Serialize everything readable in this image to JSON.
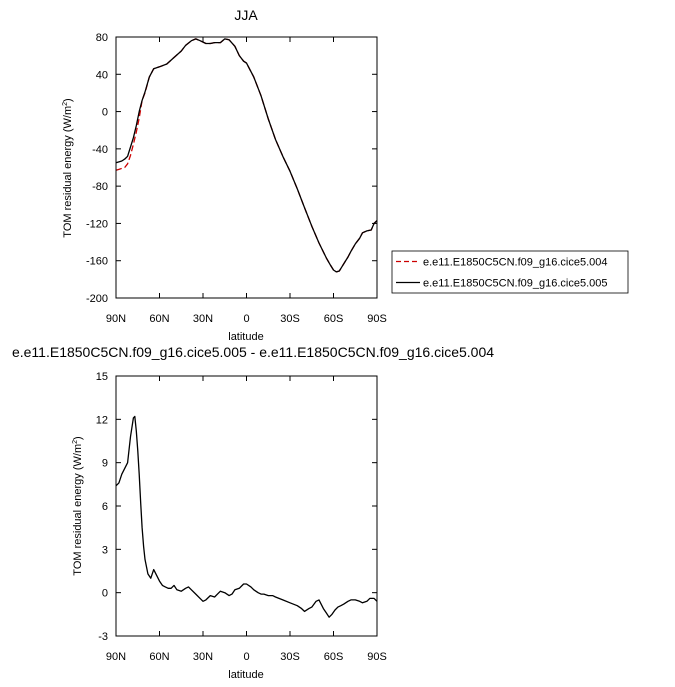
{
  "chart_data": [
    {
      "type": "line",
      "title": "JJA",
      "xlabel": "latitude",
      "ylabel_main": "TOM residual energy (W/m",
      "ylabel_sup": "2",
      "ylabel_close": ")",
      "xlim": [
        90,
        -90
      ],
      "ylim": [
        -200,
        80
      ],
      "x_ticks": [
        90,
        60,
        30,
        0,
        -30,
        -60,
        -90
      ],
      "x_tick_labels": [
        "90N",
        "60N",
        "30N",
        "0",
        "30S",
        "60S",
        "90S"
      ],
      "y_ticks": [
        -200,
        -160,
        -120,
        -80,
        -40,
        0,
        40,
        80
      ],
      "y_tick_labels": [
        "-200",
        "-160",
        "-120",
        "-80",
        "-40",
        "0",
        "40",
        "80"
      ],
      "legend_position": "right",
      "series": [
        {
          "name": "e.e11.E1850C5CN.f09_g16.cice5.004",
          "color": "#cc0000",
          "style": "dashed",
          "x": [
            90,
            88,
            86,
            84,
            82,
            80,
            78,
            76,
            74,
            72,
            70,
            67,
            64,
            60,
            55,
            50,
            45,
            42,
            38,
            35,
            32,
            28,
            25,
            22,
            18,
            15,
            12,
            8,
            5,
            2,
            0,
            -5,
            -10,
            -15,
            -20,
            -25,
            -30,
            -35,
            -40,
            -45,
            -50,
            -55,
            -58,
            -60,
            -62,
            -64,
            -66,
            -68,
            -70,
            -72,
            -75,
            -78,
            -80,
            -83,
            -86,
            -88,
            -90
          ],
          "y": [
            -63,
            -62,
            -61,
            -60,
            -56,
            -47,
            -35,
            -22,
            -7,
            12,
            20,
            37,
            46,
            48,
            51,
            58,
            65,
            71,
            76,
            78,
            76,
            73,
            73,
            74,
            74,
            78,
            77,
            70,
            60,
            54,
            52,
            37,
            17,
            -8,
            -30,
            -48,
            -64,
            -83,
            -103,
            -123,
            -141,
            -157,
            -165,
            -170,
            -172,
            -171,
            -166,
            -161,
            -156,
            -150,
            -142,
            -136,
            -130,
            -128,
            -127,
            -120,
            -117
          ]
        },
        {
          "name": "e.e11.E1850C5CN.f09_g16.cice5.005",
          "color": "#000000",
          "style": "solid",
          "x": [
            90,
            88,
            86,
            84,
            82,
            80,
            78,
            76,
            74,
            72,
            70,
            67,
            64,
            60,
            55,
            50,
            45,
            42,
            38,
            35,
            32,
            28,
            25,
            22,
            18,
            15,
            12,
            8,
            5,
            2,
            0,
            -5,
            -10,
            -15,
            -20,
            -25,
            -30,
            -35,
            -40,
            -45,
            -50,
            -55,
            -58,
            -60,
            -62,
            -64,
            -66,
            -68,
            -70,
            -72,
            -75,
            -78,
            -80,
            -83,
            -86,
            -88,
            -90
          ],
          "y": [
            -55,
            -54,
            -53,
            -51,
            -48,
            -38,
            -28,
            -15,
            0,
            12,
            21,
            37,
            46,
            48,
            51,
            58,
            65,
            71,
            76,
            78,
            76,
            73,
            73,
            74,
            74,
            78,
            77,
            70,
            60,
            54,
            52,
            37,
            17,
            -8,
            -30,
            -48,
            -64,
            -83,
            -103,
            -123,
            -141,
            -157,
            -165,
            -170,
            -172,
            -171,
            -166,
            -161,
            -156,
            -150,
            -142,
            -136,
            -130,
            -128,
            -127,
            -120,
            -117
          ]
        }
      ]
    },
    {
      "type": "line",
      "title": "e.e11.E1850C5CN.f09_g16.cice5.005 - e.e11.E1850C5CN.f09_g16.cice5.004",
      "xlabel": "latitude",
      "ylabel_main": "TOM residual energy (W/m",
      "ylabel_sup": "2",
      "ylabel_close": ")",
      "xlim": [
        90,
        -90
      ],
      "ylim": [
        -3,
        15
      ],
      "x_ticks": [
        90,
        60,
        30,
        0,
        -30,
        -60,
        -90
      ],
      "x_tick_labels": [
        "90N",
        "60N",
        "30N",
        "0",
        "30S",
        "60S",
        "90S"
      ],
      "y_ticks": [
        -3,
        0,
        3,
        6,
        9,
        12,
        15
      ],
      "y_tick_labels": [
        "-3",
        "0",
        "3",
        "6",
        "9",
        "12",
        "15"
      ],
      "series": [
        {
          "color": "#000000",
          "style": "solid",
          "x": [
            90,
            88,
            86,
            84,
            82,
            80,
            78,
            77,
            76,
            75,
            74,
            73,
            72,
            71,
            70,
            68,
            66,
            64,
            62,
            60,
            58,
            56,
            54,
            52,
            50,
            48,
            45,
            42,
            40,
            38,
            35,
            32,
            30,
            28,
            25,
            22,
            20,
            18,
            15,
            12,
            10,
            8,
            5,
            2,
            0,
            -3,
            -5,
            -8,
            -10,
            -12,
            -15,
            -18,
            -20,
            -25,
            -30,
            -35,
            -38,
            -40,
            -43,
            -45,
            -48,
            -50,
            -53,
            -55,
            -57,
            -59,
            -61,
            -63,
            -65,
            -67,
            -70,
            -72,
            -75,
            -78,
            -80,
            -83,
            -85,
            -88,
            -90
          ],
          "y": [
            7.4,
            7.6,
            8.2,
            8.6,
            9.0,
            10.8,
            12.1,
            12.2,
            11.2,
            9.8,
            8.2,
            6.2,
            4.5,
            3.2,
            2.3,
            1.3,
            1.0,
            1.6,
            1.2,
            0.8,
            0.5,
            0.4,
            0.3,
            0.3,
            0.5,
            0.2,
            0.1,
            0.3,
            0.4,
            0.2,
            -0.1,
            -0.4,
            -0.6,
            -0.5,
            -0.2,
            -0.3,
            -0.1,
            0.1,
            0.0,
            -0.2,
            -0.1,
            0.2,
            0.3,
            0.6,
            0.6,
            0.4,
            0.2,
            0.0,
            -0.1,
            -0.1,
            -0.2,
            -0.2,
            -0.3,
            -0.5,
            -0.7,
            -0.9,
            -1.1,
            -1.3,
            -1.1,
            -1.0,
            -0.6,
            -0.5,
            -1.1,
            -1.4,
            -1.7,
            -1.5,
            -1.2,
            -1.0,
            -0.9,
            -0.8,
            -0.6,
            -0.5,
            -0.5,
            -0.6,
            -0.7,
            -0.6,
            -0.4,
            -0.4,
            -0.6
          ]
        }
      ]
    }
  ]
}
